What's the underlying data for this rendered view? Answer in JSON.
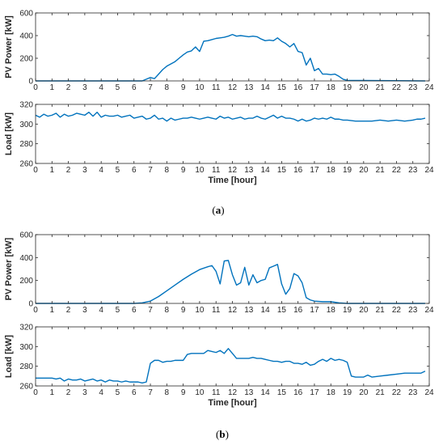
{
  "figure": {
    "captions": [
      "(a)",
      "(b)"
    ],
    "caption_letters": [
      "a",
      "b"
    ]
  },
  "colors": {
    "series": "#0072BD",
    "axis": "#262626"
  },
  "chart_data": [
    {
      "type": "line",
      "panel": "a-top",
      "title": "",
      "xlabel": "",
      "ylabel": "PV Power [kW]",
      "xlim": [
        0,
        24
      ],
      "ylim": [
        0,
        600
      ],
      "xticks": [
        0,
        1,
        2,
        3,
        4,
        5,
        6,
        7,
        8,
        9,
        10,
        11,
        12,
        13,
        14,
        15,
        16,
        17,
        18,
        19,
        20,
        21,
        22,
        23,
        24
      ],
      "yticks": [
        0,
        200,
        400,
        600
      ],
      "grid": false,
      "x": [
        0,
        6.5,
        6.75,
        7.0,
        7.25,
        7.5,
        7.75,
        8.0,
        8.25,
        8.5,
        8.75,
        9.0,
        9.25,
        9.5,
        9.75,
        10.0,
        10.25,
        10.5,
        10.75,
        11.0,
        11.25,
        11.5,
        11.75,
        12.0,
        12.25,
        12.5,
        12.75,
        13.0,
        13.25,
        13.5,
        13.75,
        14.0,
        14.25,
        14.5,
        14.75,
        15.0,
        15.25,
        15.5,
        15.75,
        16.0,
        16.25,
        16.5,
        16.75,
        17.0,
        17.25,
        17.5,
        17.75,
        18.0,
        18.25,
        18.5,
        18.75,
        19.0,
        23.75
      ],
      "y": [
        0,
        0,
        15,
        30,
        20,
        60,
        100,
        130,
        150,
        170,
        200,
        230,
        255,
        265,
        300,
        260,
        350,
        355,
        365,
        375,
        380,
        385,
        395,
        410,
        395,
        400,
        395,
        390,
        395,
        390,
        370,
        355,
        360,
        355,
        380,
        350,
        330,
        300,
        330,
        260,
        250,
        140,
        200,
        90,
        110,
        60,
        60,
        55,
        60,
        40,
        15,
        5,
        0
      ]
    },
    {
      "type": "line",
      "panel": "a-bottom",
      "title": "",
      "xlabel": "Time [hour]",
      "ylabel": "Load [kW]",
      "xlim": [
        0,
        24
      ],
      "ylim": [
        260,
        320
      ],
      "xticks": [
        0,
        1,
        2,
        3,
        4,
        5,
        6,
        7,
        8,
        9,
        10,
        11,
        12,
        13,
        14,
        15,
        16,
        17,
        18,
        19,
        20,
        21,
        22,
        23,
        24
      ],
      "yticks": [
        260,
        280,
        300,
        320
      ],
      "grid": false,
      "x": [
        0,
        0.25,
        0.5,
        0.75,
        1.0,
        1.25,
        1.5,
        1.75,
        2.0,
        2.25,
        2.5,
        2.75,
        3.0,
        3.25,
        3.5,
        3.75,
        4.0,
        4.25,
        4.5,
        4.75,
        5.0,
        5.25,
        5.5,
        5.75,
        6.0,
        6.25,
        6.5,
        6.75,
        7.0,
        7.25,
        7.5,
        7.75,
        8.0,
        8.25,
        8.5,
        8.75,
        9.0,
        9.25,
        9.5,
        9.75,
        10.0,
        10.25,
        10.5,
        10.75,
        11.0,
        11.25,
        11.5,
        11.75,
        12.0,
        12.25,
        12.5,
        12.75,
        13.0,
        13.25,
        13.5,
        13.75,
        14.0,
        14.25,
        14.5,
        14.75,
        15.0,
        15.25,
        15.5,
        15.75,
        16.0,
        16.25,
        16.5,
        16.75,
        17.0,
        17.25,
        17.5,
        17.75,
        18.0,
        18.25,
        18.5,
        18.75,
        19.0,
        19.5,
        20.0,
        20.5,
        21.0,
        21.5,
        22.0,
        22.5,
        23.0,
        23.25,
        23.5,
        23.75
      ],
      "y": [
        309,
        307,
        310,
        308,
        309,
        311,
        307,
        310,
        308,
        309,
        311,
        310,
        309,
        312,
        308,
        312,
        307,
        309,
        308,
        308,
        309,
        307,
        308,
        309,
        306,
        307,
        308,
        305,
        306,
        309,
        305,
        306,
        303,
        306,
        304,
        305,
        306,
        306,
        307,
        306,
        305,
        306,
        307,
        306,
        305,
        308,
        306,
        307,
        305,
        306,
        307,
        305,
        306,
        306,
        308,
        306,
        305,
        307,
        309,
        306,
        308,
        306,
        306,
        305,
        303,
        305,
        303,
        304,
        306,
        305,
        306,
        305,
        307,
        305,
        305,
        304,
        304,
        303,
        303,
        303,
        304,
        303,
        304,
        303,
        304,
        305,
        305,
        306
      ]
    },
    {
      "type": "line",
      "panel": "b-top",
      "title": "",
      "xlabel": "",
      "ylabel": "PV Power [kW]",
      "xlim": [
        0,
        24
      ],
      "ylim": [
        0,
        600
      ],
      "xticks": [
        0,
        1,
        2,
        3,
        4,
        5,
        6,
        7,
        8,
        9,
        10,
        11,
        12,
        13,
        14,
        15,
        16,
        17,
        18,
        19,
        20,
        21,
        22,
        23,
        24
      ],
      "yticks": [
        0,
        200,
        400,
        600
      ],
      "grid": false,
      "x": [
        0,
        6.0,
        6.5,
        7.0,
        7.5,
        8.0,
        8.5,
        9.0,
        9.5,
        10.0,
        10.5,
        10.75,
        11.0,
        11.25,
        11.5,
        11.75,
        12.0,
        12.25,
        12.5,
        12.75,
        13.0,
        13.25,
        13.5,
        13.75,
        14.0,
        14.25,
        14.5,
        14.75,
        15.0,
        15.25,
        15.5,
        15.75,
        16.0,
        16.25,
        16.5,
        16.75,
        17.0,
        17.5,
        18.0,
        18.5,
        19.0,
        23.75
      ],
      "y": [
        0,
        0,
        5,
        20,
        60,
        110,
        160,
        210,
        255,
        295,
        320,
        330,
        280,
        170,
        370,
        375,
        250,
        160,
        180,
        315,
        160,
        250,
        180,
        200,
        210,
        310,
        325,
        340,
        170,
        80,
        130,
        260,
        240,
        180,
        50,
        30,
        20,
        15,
        15,
        5,
        0,
        0
      ]
    },
    {
      "type": "line",
      "panel": "b-bottom",
      "title": "",
      "xlabel": "Time [hour]",
      "ylabel": "Load [kW]",
      "xlim": [
        0,
        24
      ],
      "ylim": [
        260,
        320
      ],
      "xticks": [
        0,
        1,
        2,
        3,
        4,
        5,
        6,
        7,
        8,
        9,
        10,
        11,
        12,
        13,
        14,
        15,
        16,
        17,
        18,
        19,
        20,
        21,
        22,
        23,
        24
      ],
      "yticks": [
        260,
        280,
        300,
        320
      ],
      "grid": false,
      "x": [
        0,
        0.5,
        1.0,
        1.25,
        1.5,
        1.75,
        2.0,
        2.25,
        2.5,
        2.75,
        3.0,
        3.25,
        3.5,
        3.75,
        4.0,
        4.25,
        4.5,
        4.75,
        5.0,
        5.25,
        5.5,
        5.75,
        6.0,
        6.25,
        6.5,
        6.75,
        7.0,
        7.25,
        7.5,
        7.75,
        8.0,
        8.25,
        8.5,
        8.75,
        9.0,
        9.25,
        9.5,
        9.75,
        10.0,
        10.25,
        10.5,
        10.75,
        11.0,
        11.25,
        11.5,
        11.75,
        12.0,
        12.25,
        12.5,
        12.75,
        13.0,
        13.25,
        13.5,
        13.75,
        14.0,
        14.25,
        14.5,
        14.75,
        15.0,
        15.25,
        15.5,
        15.75,
        16.0,
        16.25,
        16.5,
        16.75,
        17.0,
        17.25,
        17.5,
        17.75,
        18.0,
        18.25,
        18.5,
        18.75,
        19.0,
        19.25,
        19.5,
        20.0,
        20.25,
        20.5,
        21.0,
        21.5,
        22.0,
        22.5,
        23.0,
        23.5,
        23.75
      ],
      "y": [
        268,
        268,
        268,
        267,
        268,
        265,
        267,
        266,
        266,
        267,
        265,
        266,
        267,
        265,
        266,
        264,
        266,
        265,
        265,
        264,
        265,
        264,
        264,
        264,
        263,
        264,
        283,
        286,
        286,
        284,
        285,
        285,
        286,
        286,
        286,
        292,
        293,
        293,
        293,
        293,
        296,
        295,
        294,
        296,
        293,
        298,
        293,
        288,
        288,
        288,
        288,
        289,
        288,
        288,
        287,
        286,
        285,
        285,
        284,
        285,
        285,
        283,
        283,
        282,
        284,
        281,
        282,
        285,
        287,
        285,
        288,
        286,
        287,
        286,
        284,
        270,
        269,
        269,
        271,
        269,
        270,
        271,
        272,
        273,
        273,
        273,
        275
      ]
    }
  ]
}
